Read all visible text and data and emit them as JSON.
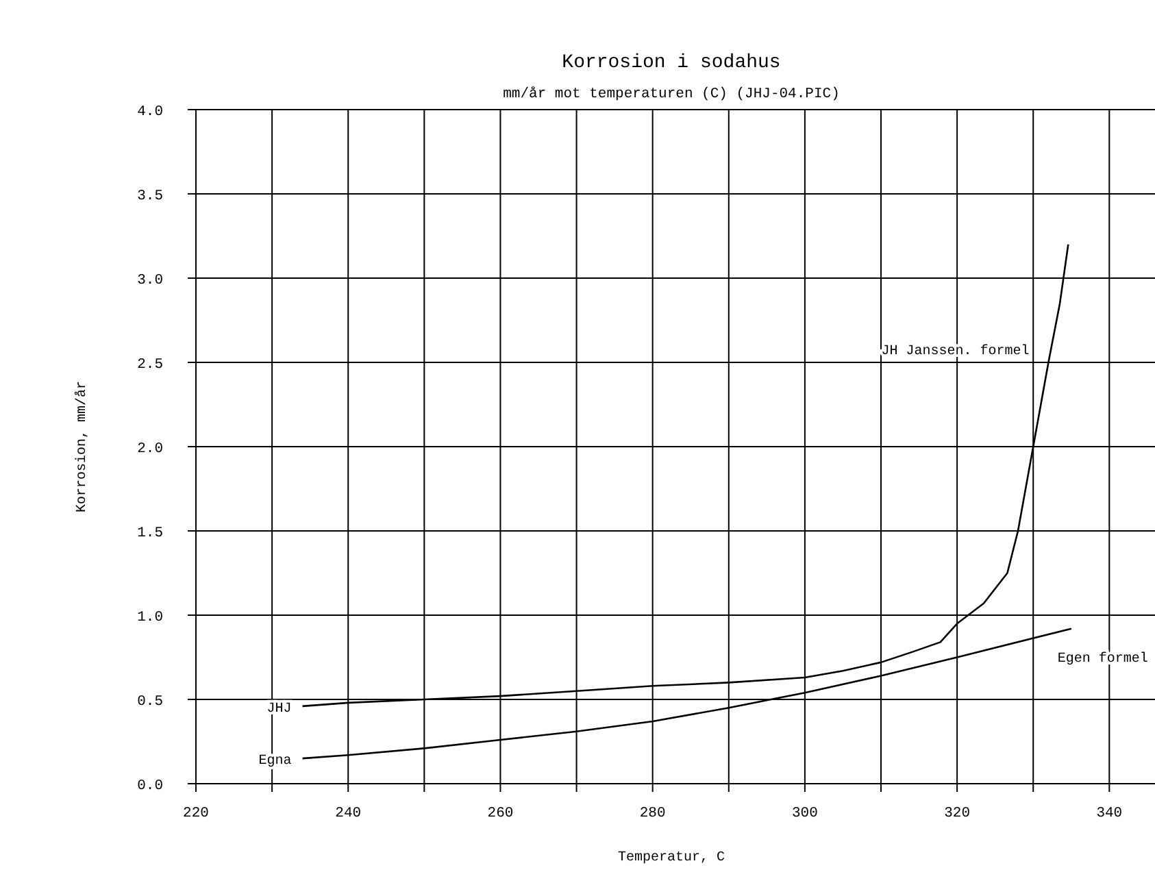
{
  "chart_data": {
    "type": "line",
    "title": "Korrosion i sodahus",
    "subtitle": "mm/år mot temperaturen (C) (JHJ-04.PIC)",
    "xlabel": "Temperatur, C",
    "ylabel": "Korrosion, mm/år",
    "xlim": [
      220,
      346
    ],
    "xticks": [
      220,
      {
        "value": 230,
        "label": null
      },
      240,
      {
        "value": 250,
        "label": null
      },
      260,
      {
        "value": 270,
        "label": null
      },
      280,
      {
        "value": 290,
        "label": null
      },
      300,
      {
        "value": 310,
        "label": null
      },
      320,
      {
        "value": 330,
        "label": null
      },
      340
    ],
    "ylim": [
      0,
      4
    ],
    "yticks": [
      {
        "value": 0,
        "label": "0.0"
      },
      {
        "value": 0.5,
        "label": "0.5"
      },
      {
        "value": 1,
        "label": "1.0"
      },
      {
        "value": 1.5,
        "label": "1.5"
      },
      {
        "value": 2,
        "label": "2.0"
      },
      {
        "value": 2.5,
        "label": "2.5"
      },
      {
        "value": 3,
        "label": "3.0"
      },
      {
        "value": 3.5,
        "label": "3.5"
      },
      {
        "value": 4,
        "label": "4.0"
      }
    ],
    "grid": true,
    "marker": "none",
    "line_style": "solid",
    "series": [
      {
        "name": "JHJ",
        "color": "#000000",
        "x": [
          234,
          240,
          250,
          260,
          270,
          280,
          290,
          300,
          305,
          310,
          314,
          317.8,
          320,
          323.5,
          326.6,
          328,
          330,
          332,
          333.5,
          334.6
        ],
        "values": [
          0.46,
          0.48,
          0.5,
          0.52,
          0.55,
          0.58,
          0.6,
          0.63,
          0.67,
          0.72,
          0.78,
          0.84,
          0.95,
          1.07,
          1.25,
          1.5,
          2.0,
          2.5,
          2.85,
          3.2
        ]
      },
      {
        "name": "Egna",
        "color": "#000000",
        "x": [
          234,
          240,
          250,
          260,
          270,
          280,
          290,
          300,
          310,
          320,
          335
        ],
        "values": [
          0.15,
          0.17,
          0.21,
          0.26,
          0.31,
          0.37,
          0.45,
          0.54,
          0.64,
          0.75,
          0.92
        ]
      }
    ],
    "annotations": [
      {
        "text": "JH Janssen. formel",
        "x": 332,
        "y": 2.5
      },
      {
        "text": "Egen formel",
        "x": 335,
        "y": 0.92
      }
    ]
  }
}
